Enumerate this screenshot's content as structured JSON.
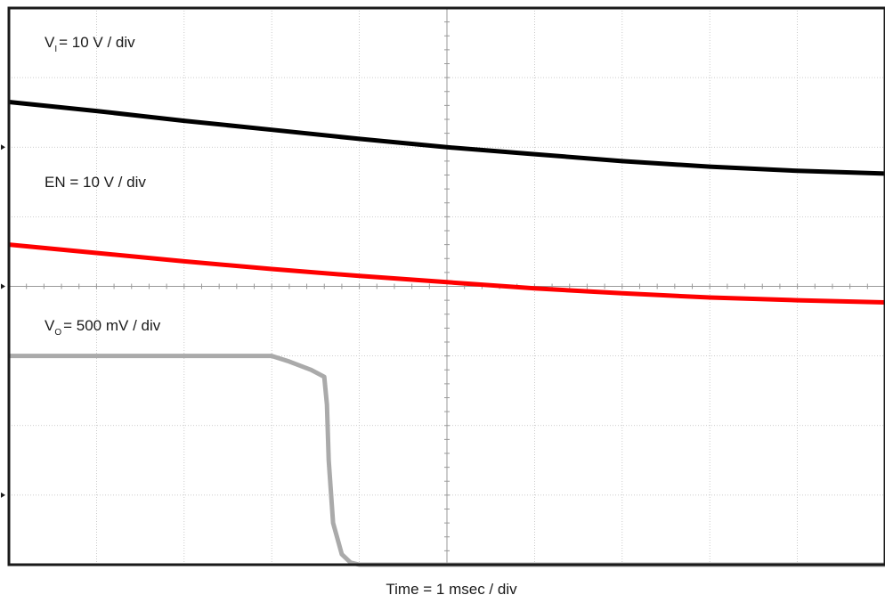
{
  "chart_data": {
    "type": "line",
    "title": "",
    "xlabel": "Time = 1 msec / div",
    "x_unit": "ms",
    "x_divisions": 10,
    "y_divisions": 8,
    "grid": true,
    "series": [
      {
        "name_main": "V",
        "name_sub": "I",
        "name_rest": "= 10 V / div",
        "color": "#000000",
        "unit": "div",
        "x": [
          0,
          1,
          2,
          3,
          4,
          5,
          6,
          7,
          8,
          9,
          10
        ],
        "y": [
          6.65,
          6.52,
          6.38,
          6.25,
          6.12,
          6.0,
          5.9,
          5.8,
          5.72,
          5.66,
          5.62
        ]
      },
      {
        "name": "EN = 10 V / div",
        "color": "#ff0000",
        "unit": "div",
        "x": [
          0,
          1,
          2,
          3,
          4,
          5,
          6,
          7,
          8,
          9,
          10
        ],
        "y": [
          4.6,
          4.48,
          4.36,
          4.25,
          4.15,
          4.06,
          3.97,
          3.9,
          3.84,
          3.8,
          3.77
        ]
      },
      {
        "name_main": "V",
        "name_sub": "O",
        "name_rest": "= 500 mV / div",
        "color": "#aaaaaa",
        "unit": "div",
        "x": [
          0,
          1,
          2,
          3,
          3.2,
          3.45,
          3.6,
          3.63,
          3.65,
          3.7,
          3.8,
          3.9,
          4.0,
          5,
          6,
          7,
          8,
          9,
          10
        ],
        "y": [
          3.0,
          3.0,
          3.0,
          3.0,
          2.92,
          2.8,
          2.7,
          2.3,
          1.5,
          0.6,
          0.15,
          0.03,
          0.0,
          0.0,
          0.0,
          0.0,
          0.0,
          0.0,
          0.0
        ]
      }
    ],
    "ground_markers_div": [
      6,
      4,
      1
    ]
  }
}
